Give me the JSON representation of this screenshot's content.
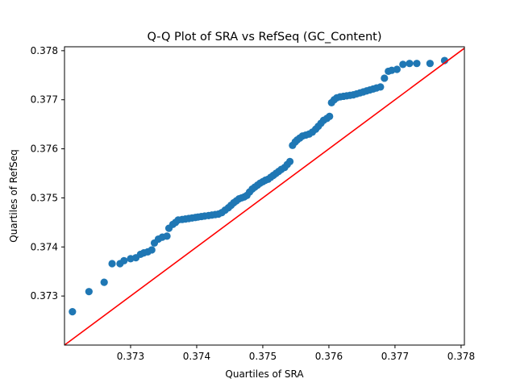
{
  "chart_data": {
    "type": "scatter",
    "title": "Q-Q Plot of SRA vs RefSeq (GC_Content)",
    "xlabel": "Quartiles of SRA",
    "ylabel": "Quartiles of RefSeq",
    "xlim": [
      0.372,
      0.37805
    ],
    "ylim": [
      0.372,
      0.37808
    ],
    "xticks": [
      0.373,
      0.374,
      0.375,
      0.376,
      0.377,
      0.378
    ],
    "xtick_labels": [
      "0.373",
      "0.374",
      "0.375",
      "0.376",
      "0.377",
      "0.378"
    ],
    "yticks": [
      0.373,
      0.374,
      0.375,
      0.376,
      0.377,
      0.378
    ],
    "ytick_labels": [
      "0.373",
      "0.374",
      "0.375",
      "0.376",
      "0.377",
      "0.378"
    ],
    "grid": false,
    "marker_color": "#1f77b4",
    "line_color": "#ff0000",
    "reference_line": {
      "label": "",
      "slope": 1,
      "intercept": 0
    },
    "points": [
      [
        0.37212,
        0.37268
      ],
      [
        0.37237,
        0.37309
      ],
      [
        0.3726,
        0.37328
      ],
      [
        0.37272,
        0.37366
      ],
      [
        0.37284,
        0.37366
      ],
      [
        0.3729,
        0.37372
      ],
      [
        0.373,
        0.37376
      ],
      [
        0.37308,
        0.37378
      ],
      [
        0.37315,
        0.37385
      ],
      [
        0.3732,
        0.37388
      ],
      [
        0.37326,
        0.3739
      ],
      [
        0.37332,
        0.37394
      ],
      [
        0.37336,
        0.37408
      ],
      [
        0.37342,
        0.37416
      ],
      [
        0.37348,
        0.3742
      ],
      [
        0.37355,
        0.37422
      ],
      [
        0.37358,
        0.37438
      ],
      [
        0.37364,
        0.37446
      ],
      [
        0.37368,
        0.3745
      ],
      [
        0.37372,
        0.37455
      ],
      [
        0.37378,
        0.37456
      ],
      [
        0.37383,
        0.37457
      ],
      [
        0.37388,
        0.37458
      ],
      [
        0.37393,
        0.37459
      ],
      [
        0.37398,
        0.3746
      ],
      [
        0.37402,
        0.37461
      ],
      [
        0.37407,
        0.37462
      ],
      [
        0.37412,
        0.37463
      ],
      [
        0.37418,
        0.37464
      ],
      [
        0.37423,
        0.37465
      ],
      [
        0.37428,
        0.37466
      ],
      [
        0.37433,
        0.37467
      ],
      [
        0.37438,
        0.3747
      ],
      [
        0.37443,
        0.37475
      ],
      [
        0.37448,
        0.3748
      ],
      [
        0.37452,
        0.37485
      ],
      [
        0.37456,
        0.3749
      ],
      [
        0.3746,
        0.37494
      ],
      [
        0.37464,
        0.37498
      ],
      [
        0.37468,
        0.375
      ],
      [
        0.37472,
        0.37502
      ],
      [
        0.37476,
        0.37505
      ],
      [
        0.3748,
        0.37512
      ],
      [
        0.37484,
        0.37518
      ],
      [
        0.37488,
        0.37522
      ],
      [
        0.37492,
        0.37526
      ],
      [
        0.37496,
        0.3753
      ],
      [
        0.375,
        0.37533
      ],
      [
        0.37504,
        0.37536
      ],
      [
        0.37508,
        0.37538
      ],
      [
        0.37512,
        0.37542
      ],
      [
        0.37516,
        0.37546
      ],
      [
        0.3752,
        0.3755
      ],
      [
        0.37524,
        0.37554
      ],
      [
        0.37528,
        0.37558
      ],
      [
        0.37533,
        0.37562
      ],
      [
        0.37537,
        0.37568
      ],
      [
        0.37541,
        0.37574
      ],
      [
        0.37545,
        0.37607
      ],
      [
        0.37549,
        0.37614
      ],
      [
        0.37552,
        0.37618
      ],
      [
        0.37556,
        0.37622
      ],
      [
        0.3756,
        0.37626
      ],
      [
        0.37565,
        0.37628
      ],
      [
        0.3757,
        0.3763
      ],
      [
        0.37575,
        0.37634
      ],
      [
        0.3758,
        0.3764
      ],
      [
        0.37584,
        0.37646
      ],
      [
        0.37588,
        0.37652
      ],
      [
        0.37592,
        0.37658
      ],
      [
        0.37597,
        0.37662
      ],
      [
        0.37601,
        0.37666
      ],
      [
        0.37604,
        0.37694
      ],
      [
        0.37608,
        0.377
      ],
      [
        0.37612,
        0.37704
      ],
      [
        0.37617,
        0.37706
      ],
      [
        0.37622,
        0.37707
      ],
      [
        0.37627,
        0.37708
      ],
      [
        0.37632,
        0.37709
      ],
      [
        0.37637,
        0.3771
      ],
      [
        0.37642,
        0.37712
      ],
      [
        0.37647,
        0.37714
      ],
      [
        0.37652,
        0.37716
      ],
      [
        0.37657,
        0.37718
      ],
      [
        0.37662,
        0.3772
      ],
      [
        0.37667,
        0.37722
      ],
      [
        0.37672,
        0.37724
      ],
      [
        0.37678,
        0.37726
      ],
      [
        0.37684,
        0.37744
      ],
      [
        0.3769,
        0.37758
      ],
      [
        0.37695,
        0.3776
      ],
      [
        0.37703,
        0.37762
      ],
      [
        0.37712,
        0.37772
      ],
      [
        0.37722,
        0.37774
      ],
      [
        0.37733,
        0.37774
      ],
      [
        0.37753,
        0.37774
      ],
      [
        0.37775,
        0.3778
      ]
    ]
  }
}
